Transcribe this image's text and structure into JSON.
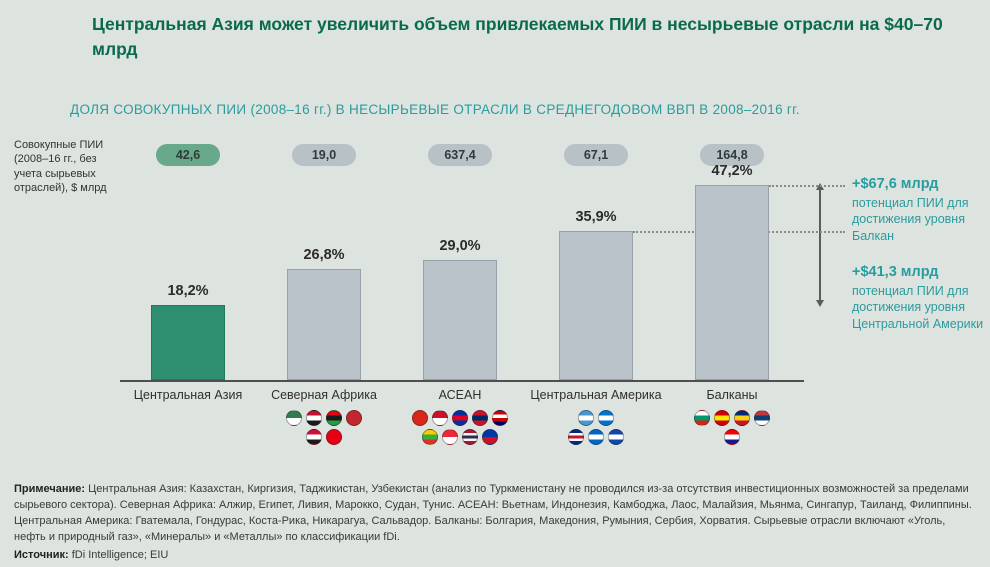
{
  "page": {
    "title": "Центральная Азия может увеличить объем привлекаемых ПИИ в несырьевые отрасли на $40–70 млрд",
    "note_label": "Примечание:",
    "note_text": "Центральная Азия: Казахстан, Киргизия, Таджикистан, Узбекистан (анализ по Туркменистану не проводился из-за отсутствия инвестиционных возможностей за пределами сырьевого сектора). Северная Африка: Алжир, Египет, Ливия, Марокко, Судан, Тунис. АСЕАН: Вьетнам, Индонезия, Камбоджа, Лаос, Малайзия, Мьянма, Сингапур, Таиланд, Филиппины. Центральная Америка: Гватемала, Гондурас, Коста-Рика, Никарагуа, Сальвадор. Балканы: Болгария, Македония, Румыния, Сербия, Хорватия. Сырьевые отрасли включают «Уголь, нефть и природный газ», «Минералы» и «Металлы» по классификации fDi.",
    "source_label": "Источник:",
    "source_text": "fDi Intelligence; EIU"
  },
  "colors": {
    "background": "#dde3de",
    "title_green": "#0a6a4f",
    "teal": "#2a9c9f",
    "pill_green": "#68a98b",
    "pill_gray": "#b7c1c6",
    "text_dark": "#333333"
  },
  "chart_data": {
    "type": "bar",
    "title": "ДОЛЯ СОВОКУПНЫХ ПИИ (2008–16 гг.) В НЕСЫРЬЕВЫЕ ОТРАСЛИ В СРЕДНЕГОДОВОМ ВВП В 2008–2016 гг.",
    "unit_note": "Совокупные ПИИ (2008–16 гг., без учета сырьевых отраслей), $ млрд",
    "categories": [
      "Центральная Азия",
      "Северная Африка",
      "АСЕАН",
      "Центральная Америка",
      "Балканы"
    ],
    "values": [
      18.2,
      26.8,
      29.0,
      35.9,
      47.2
    ],
    "value_labels": [
      "18,2%",
      "26,8%",
      "29,0%",
      "35,9%",
      "47,2%"
    ],
    "total_fdi_bln_labels": [
      "42,6",
      "19,0",
      "637,4",
      "67,1",
      "164,8"
    ],
    "ylim": [
      0,
      50
    ],
    "grid": false,
    "legend": "none",
    "bar_colors": [
      "#2d8f6f",
      "#b9c3c9",
      "#b9c3c9",
      "#b9c3c9",
      "#b9c3c9"
    ],
    "bar_border_colors": [
      "#1f7a5c",
      "#97a1a7",
      "#97a1a7",
      "#97a1a7",
      "#97a1a7"
    ],
    "annotations": [
      {
        "value": "+$67,6 млрд",
        "text": "потенциал ПИИ для достижения уровня Балкан",
        "level_category": "Балканы"
      },
      {
        "value": "+$41,3 млрд",
        "text": "потенциал ПИИ для достижения уровня Центральной Америки",
        "level_category": "Центральная Америка"
      }
    ],
    "flags": [
      [],
      [
        [
          {
            "country": "Алжир",
            "colors": [
              "#2e7d4f",
              "#ffffff"
            ]
          },
          {
            "country": "Египет",
            "colors": [
              "#c8102e",
              "#ffffff",
              "#1a1a1a"
            ]
          },
          {
            "country": "Ливия",
            "colors": [
              "#e70013",
              "#1a1a1a",
              "#239e46"
            ]
          },
          {
            "country": "Марокко",
            "colors": [
              "#c1272d"
            ]
          }
        ],
        [
          {
            "country": "Судан",
            "colors": [
              "#d21034",
              "#ffffff",
              "#1a1a1a"
            ]
          },
          {
            "country": "Тунис",
            "colors": [
              "#e70013"
            ]
          }
        ]
      ],
      [
        [
          {
            "country": "Вьетнам",
            "colors": [
              "#da251d"
            ]
          },
          {
            "country": "Индонезия",
            "colors": [
              "#ce1126",
              "#ffffff"
            ]
          },
          {
            "country": "Камбоджа",
            "colors": [
              "#032ea1",
              "#e00025",
              "#032ea1"
            ]
          },
          {
            "country": "Лаос",
            "colors": [
              "#ce1126",
              "#002868",
              "#ce1126"
            ]
          },
          {
            "country": "Малайзия",
            "colors": [
              "#cc0001",
              "#ffffff",
              "#cc0001",
              "#010066"
            ]
          }
        ],
        [
          {
            "country": "Мьянма",
            "colors": [
              "#fecb00",
              "#34b233",
              "#ea2839"
            ]
          },
          {
            "country": "Сингапур",
            "colors": [
              "#ed2939",
              "#ffffff"
            ]
          },
          {
            "country": "Таиланд",
            "colors": [
              "#a51931",
              "#f4f5f8",
              "#2d2a4a",
              "#f4f5f8",
              "#a51931"
            ]
          },
          {
            "country": "Филиппины",
            "colors": [
              "#0038a8",
              "#ce1126"
            ]
          }
        ]
      ],
      [
        [
          {
            "country": "Гватемала",
            "colors": [
              "#4997d0",
              "#ffffff",
              "#4997d0"
            ]
          },
          {
            "country": "Гондурас",
            "colors": [
              "#0073cf",
              "#ffffff",
              "#0073cf"
            ]
          }
        ],
        [
          {
            "country": "Коста-Рика",
            "colors": [
              "#002b7f",
              "#ffffff",
              "#ce1126",
              "#ffffff",
              "#002b7f"
            ]
          },
          {
            "country": "Никарагуа",
            "colors": [
              "#0067c6",
              "#ffffff",
              "#0067c6"
            ]
          },
          {
            "country": "Сальвадор",
            "colors": [
              "#0f47af",
              "#ffffff",
              "#0f47af"
            ]
          }
        ]
      ],
      [
        [
          {
            "country": "Болгария",
            "colors": [
              "#ffffff",
              "#00966e",
              "#d62612"
            ]
          },
          {
            "country": "Македония",
            "colors": [
              "#d20000",
              "#ffe600",
              "#d20000"
            ]
          },
          {
            "country": "Румыния",
            "colors": [
              "#002b7f",
              "#fcd116",
              "#ce1126"
            ]
          },
          {
            "country": "Сербия",
            "colors": [
              "#c6363c",
              "#0c4076",
              "#ffffff"
            ]
          }
        ],
        [
          {
            "country": "Хорватия",
            "colors": [
              "#ff0000",
              "#ffffff",
              "#171796"
            ]
          }
        ]
      ]
    ]
  }
}
